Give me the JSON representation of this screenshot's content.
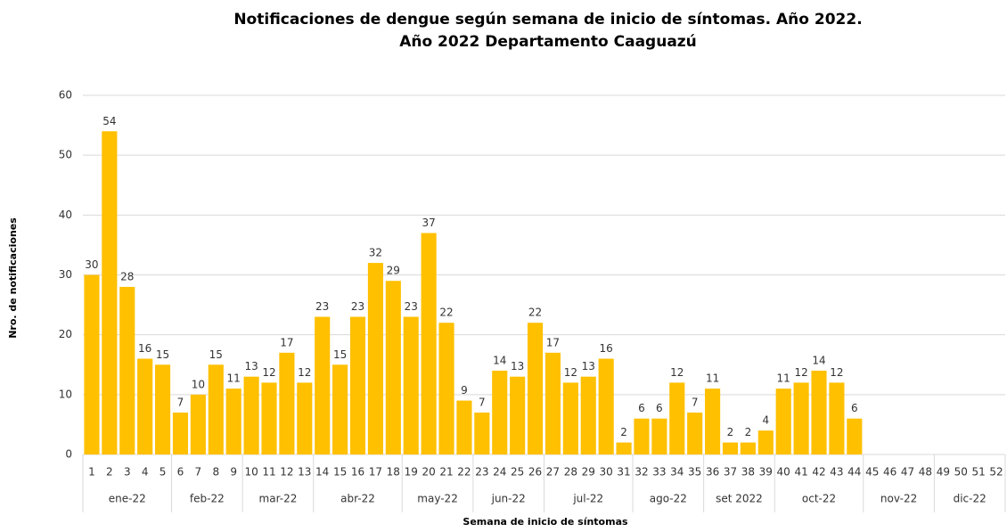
{
  "chart_data": {
    "type": "bar",
    "title": [
      "Notificaciones de dengue según semana de inicio de síntomas. Año 2022.",
      "Año 2022 Departamento Caaguazú"
    ],
    "xlabel": "Semana de inicio de síntomas",
    "ylabel": "Nro. de notificaciones",
    "categories": [
      "1",
      "2",
      "3",
      "4",
      "5",
      "6",
      "7",
      "8",
      "9",
      "10",
      "11",
      "12",
      "13",
      "14",
      "15",
      "16",
      "17",
      "18",
      "19",
      "20",
      "21",
      "22",
      "23",
      "24",
      "25",
      "26",
      "27",
      "28",
      "29",
      "30",
      "31",
      "32",
      "33",
      "34",
      "35",
      "36",
      "37",
      "38",
      "39",
      "40",
      "41",
      "42",
      "43",
      "44",
      "45",
      "46",
      "47",
      "48",
      "49",
      "50",
      "51",
      "52"
    ],
    "values": [
      30,
      54,
      28,
      16,
      15,
      7,
      10,
      15,
      11,
      13,
      12,
      17,
      12,
      23,
      15,
      23,
      32,
      29,
      23,
      37,
      22,
      9,
      7,
      14,
      13,
      22,
      17,
      12,
      13,
      16,
      2,
      6,
      6,
      12,
      7,
      11,
      2,
      2,
      4,
      11,
      12,
      14,
      12,
      6,
      null,
      null,
      null,
      null,
      null,
      null,
      null,
      null
    ],
    "groups": [
      {
        "label": "ene-22",
        "span": 5
      },
      {
        "label": "feb-22",
        "span": 4
      },
      {
        "label": "mar-22",
        "span": 4
      },
      {
        "label": "abr-22",
        "span": 5
      },
      {
        "label": "may-22",
        "span": 4
      },
      {
        "label": "jun-22",
        "span": 4
      },
      {
        "label": "jul-22",
        "span": 5
      },
      {
        "label": "ago-22",
        "span": 4
      },
      {
        "label": "set 2022",
        "span": 4
      },
      {
        "label": "oct-22",
        "span": 5
      },
      {
        "label": "nov-22",
        "span": 4
      },
      {
        "label": "dic-22",
        "span": 4
      }
    ],
    "color": "#FFC000",
    "ylim": [
      0,
      60
    ],
    "yticks": [
      0,
      10,
      20,
      30,
      40,
      50,
      60
    ],
    "grid": true
  }
}
